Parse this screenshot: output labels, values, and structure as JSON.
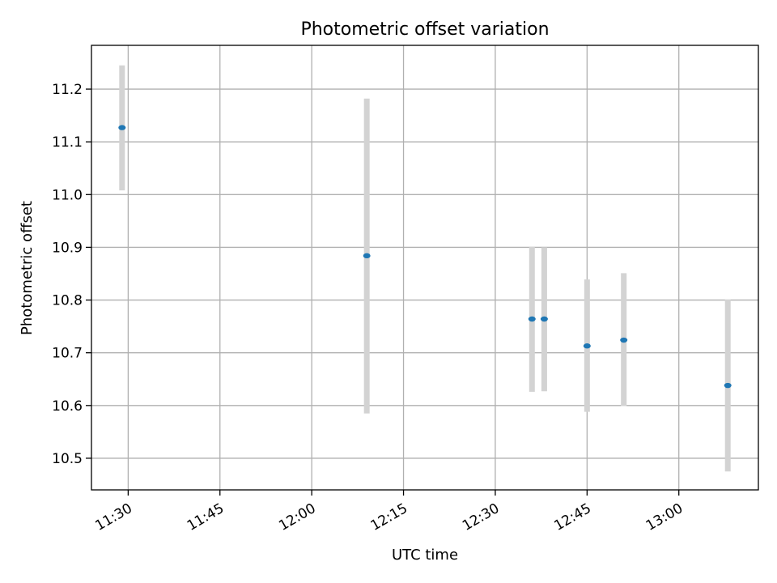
{
  "chart_data": {
    "type": "scatter",
    "title": "Photometric offset variation",
    "xlabel": "UTC time",
    "ylabel": "Photometric offset",
    "x_ticks": [
      "11:30",
      "11:45",
      "12:00",
      "12:15",
      "12:30",
      "12:45",
      "13:00"
    ],
    "y_ticks": [
      "10.5",
      "10.6",
      "10.7",
      "10.8",
      "10.9",
      "11.0",
      "11.1",
      "11.2"
    ],
    "xlim": [
      "11:24",
      "13:13"
    ],
    "ylim": [
      10.44,
      11.283
    ],
    "grid": true,
    "points": [
      {
        "x": "11:29",
        "y": 11.127,
        "err_low": 11.008,
        "err_high": 11.245
      },
      {
        "x": "12:09",
        "y": 10.884,
        "err_low": 10.585,
        "err_high": 11.182
      },
      {
        "x": "12:36",
        "y": 10.764,
        "err_low": 10.626,
        "err_high": 10.901
      },
      {
        "x": "12:38",
        "y": 10.764,
        "err_low": 10.627,
        "err_high": 10.9
      },
      {
        "x": "12:45",
        "y": 10.713,
        "err_low": 10.588,
        "err_high": 10.839
      },
      {
        "x": "12:51",
        "y": 10.724,
        "err_low": 10.599,
        "err_high": 10.851
      },
      {
        "x": "13:08",
        "y": 10.638,
        "err_low": 10.475,
        "err_high": 10.801
      }
    ],
    "colors": {
      "marker": "#1f77b4",
      "errorbar": "#d3d3d3",
      "grid": "#b0b0b0"
    }
  }
}
